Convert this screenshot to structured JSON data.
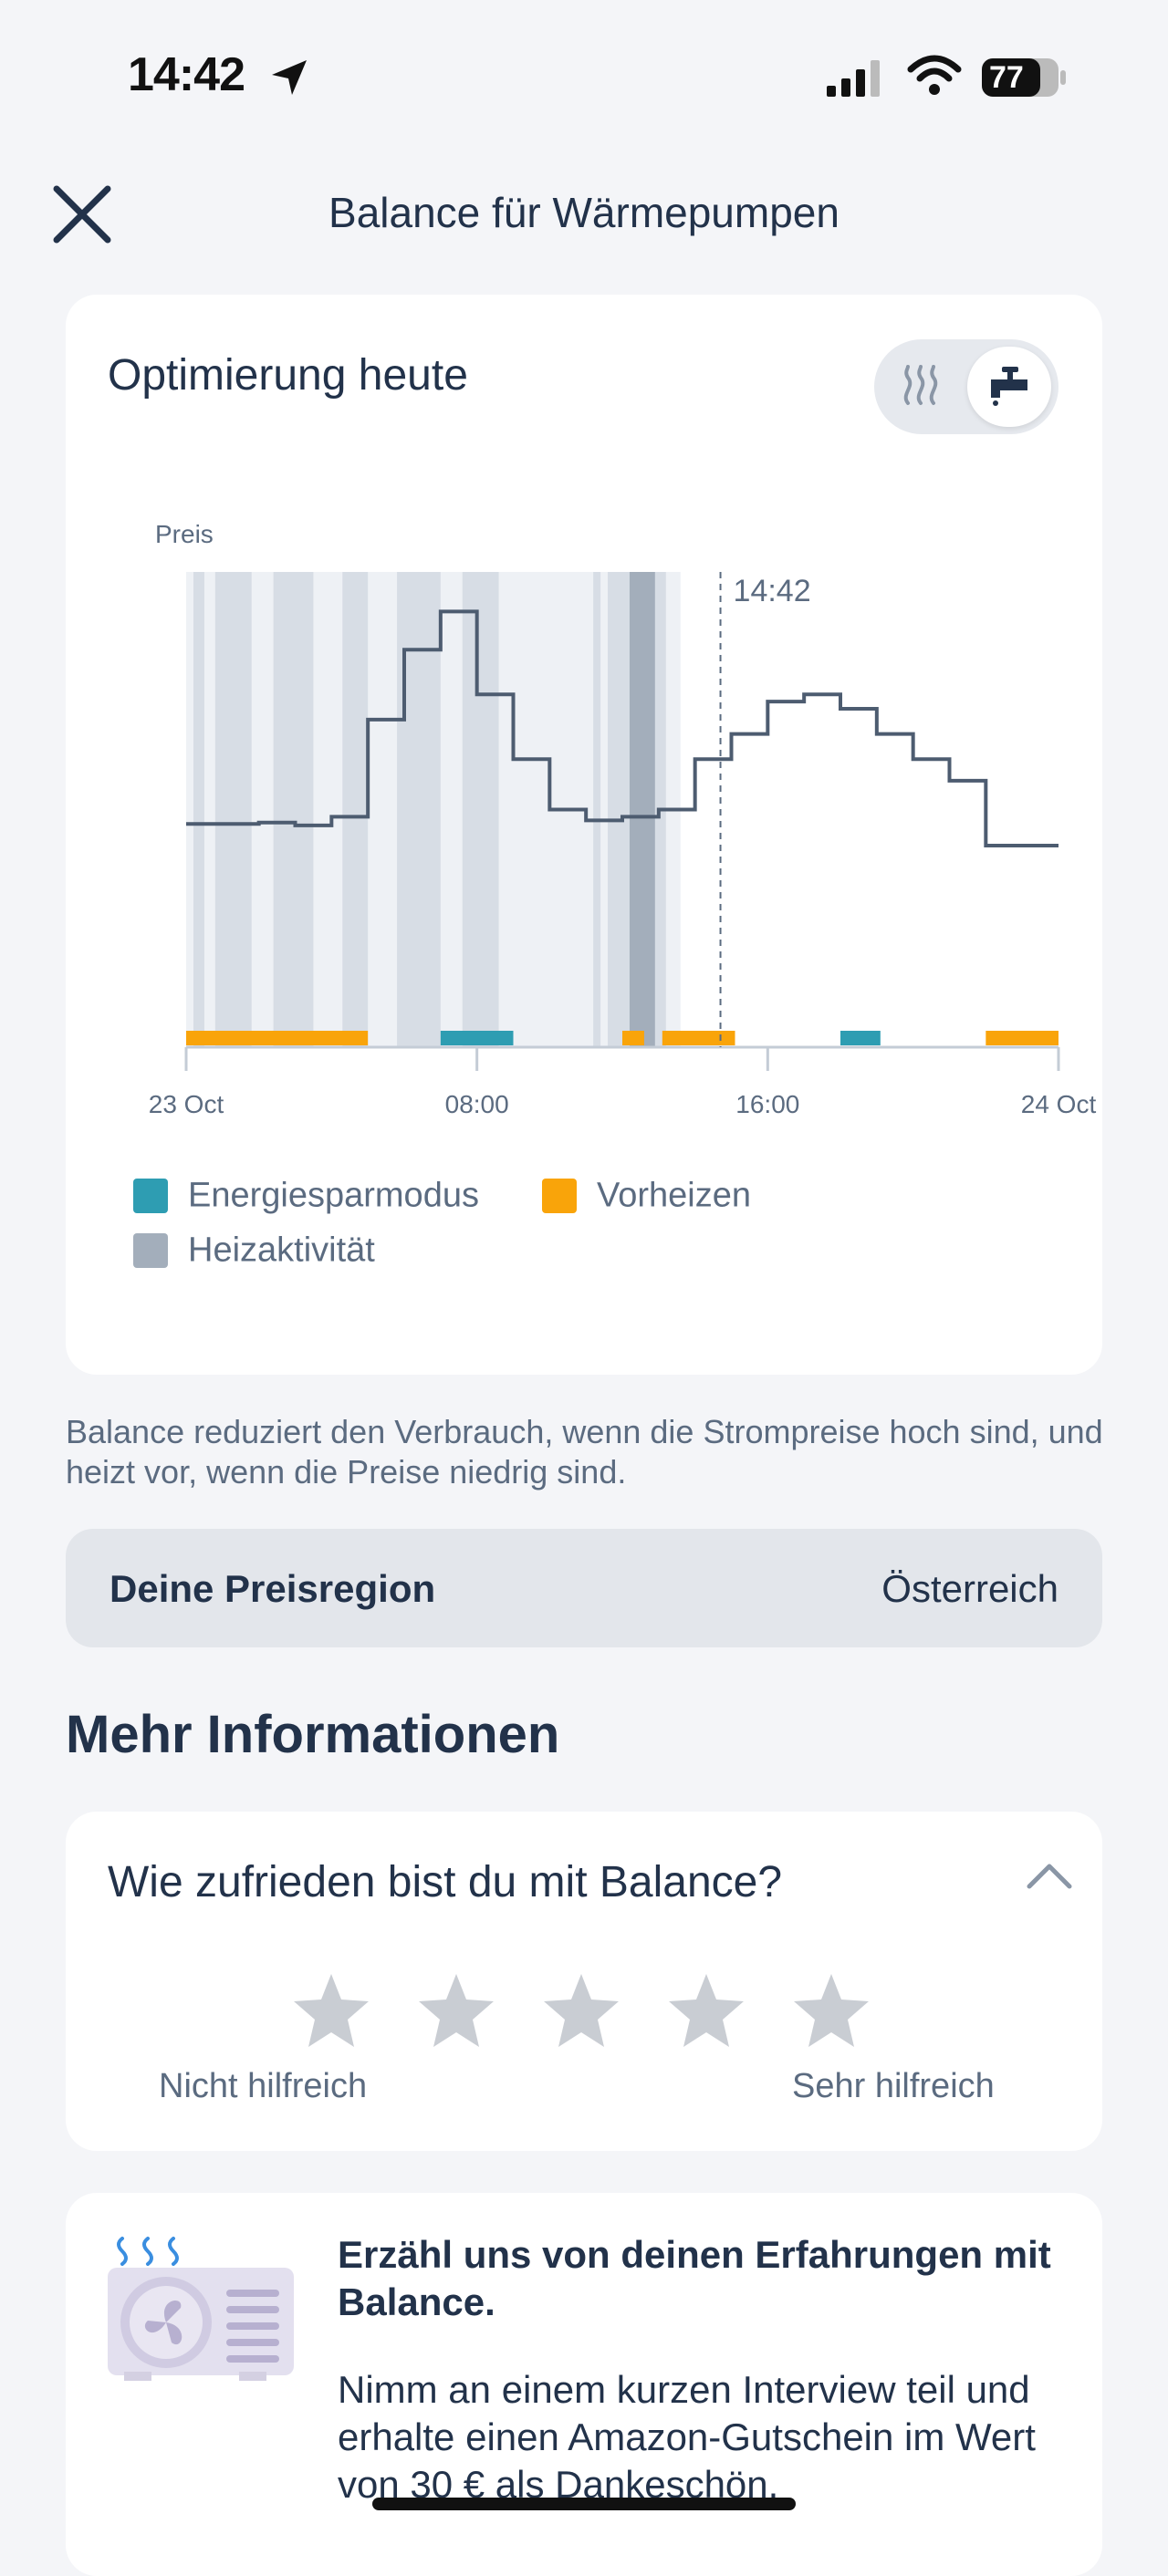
{
  "status_bar": {
    "time": "14:42",
    "battery": "77"
  },
  "header": {
    "title": "Balance für Wärmepumpen"
  },
  "chart_card": {
    "title": "Optimierung heute",
    "toggle": {
      "options": [
        "heating",
        "hot-water"
      ],
      "selected": "hot-water"
    }
  },
  "chart_data": {
    "type": "line",
    "ylabel": "Preis",
    "x_ticks": [
      "23 Oct",
      "08:00",
      "16:00",
      "24 Oct"
    ],
    "now_marker": "14:42",
    "x_unit": "hour",
    "xlim": [
      0,
      24
    ],
    "price_series": {
      "x": [
        0,
        1,
        2,
        3,
        4,
        5,
        6,
        7,
        8,
        9,
        10,
        11,
        12,
        13,
        14,
        15,
        16,
        17,
        18,
        19,
        20,
        21,
        22,
        23,
        24
      ],
      "y": [
        3.1,
        3.1,
        3.12,
        3.08,
        3.2,
        4.55,
        5.52,
        6.05,
        4.9,
        4.0,
        3.3,
        3.15,
        3.2,
        3.3,
        4.0,
        4.35,
        4.8,
        4.9,
        4.7,
        4.35,
        4.0,
        3.7,
        2.8,
        2.8,
        2.8
      ]
    },
    "heating_bands": [
      [
        0.2,
        0.5
      ],
      [
        0.8,
        1.8
      ],
      [
        2.4,
        3.5
      ],
      [
        4.3,
        5.0
      ],
      [
        5.8,
        7.0
      ],
      [
        7.6,
        8.6
      ],
      [
        11.2,
        11.4
      ],
      [
        11.6,
        12.3
      ],
      [
        12.9,
        13.2
      ]
    ],
    "heating_activity": [
      [
        12.2,
        12.9
      ]
    ],
    "energy_saving": [
      [
        7.0,
        9.0
      ],
      [
        18.0,
        19.1
      ]
    ],
    "preheat": [
      [
        0,
        5.0
      ],
      [
        12.0,
        12.6
      ],
      [
        13.1,
        15.1
      ],
      [
        22.0,
        24.0
      ]
    ],
    "legend": [
      {
        "label": "Energiesparmodus",
        "color": "#2e9db2"
      },
      {
        "label": "Vorheizen",
        "color": "#f9a40a"
      },
      {
        "label": "Heizaktivität",
        "color": "#a3aebb"
      }
    ]
  },
  "info_text": "Balance reduziert den Verbrauch, wenn die Strompreise hoch sind, und heizt vor, wenn die Preise niedrig sind.",
  "region": {
    "label": "Deine Preisregion",
    "value": "Österreich"
  },
  "more_info": {
    "heading": "Mehr Informationen"
  },
  "rating": {
    "question": "Wie zufrieden bist du mit Balance?",
    "stars": 5,
    "selected": 0,
    "label_low": "Nicht hilfreich",
    "label_high": "Sehr hilfreich"
  },
  "promo": {
    "title": "Erzähl uns von deinen Erfahrungen mit Balance.",
    "body": "Nimm an einem kurzen Interview teil und erhalte einen Amazon-Gutschein im Wert von 30 € als Dankeschön."
  }
}
